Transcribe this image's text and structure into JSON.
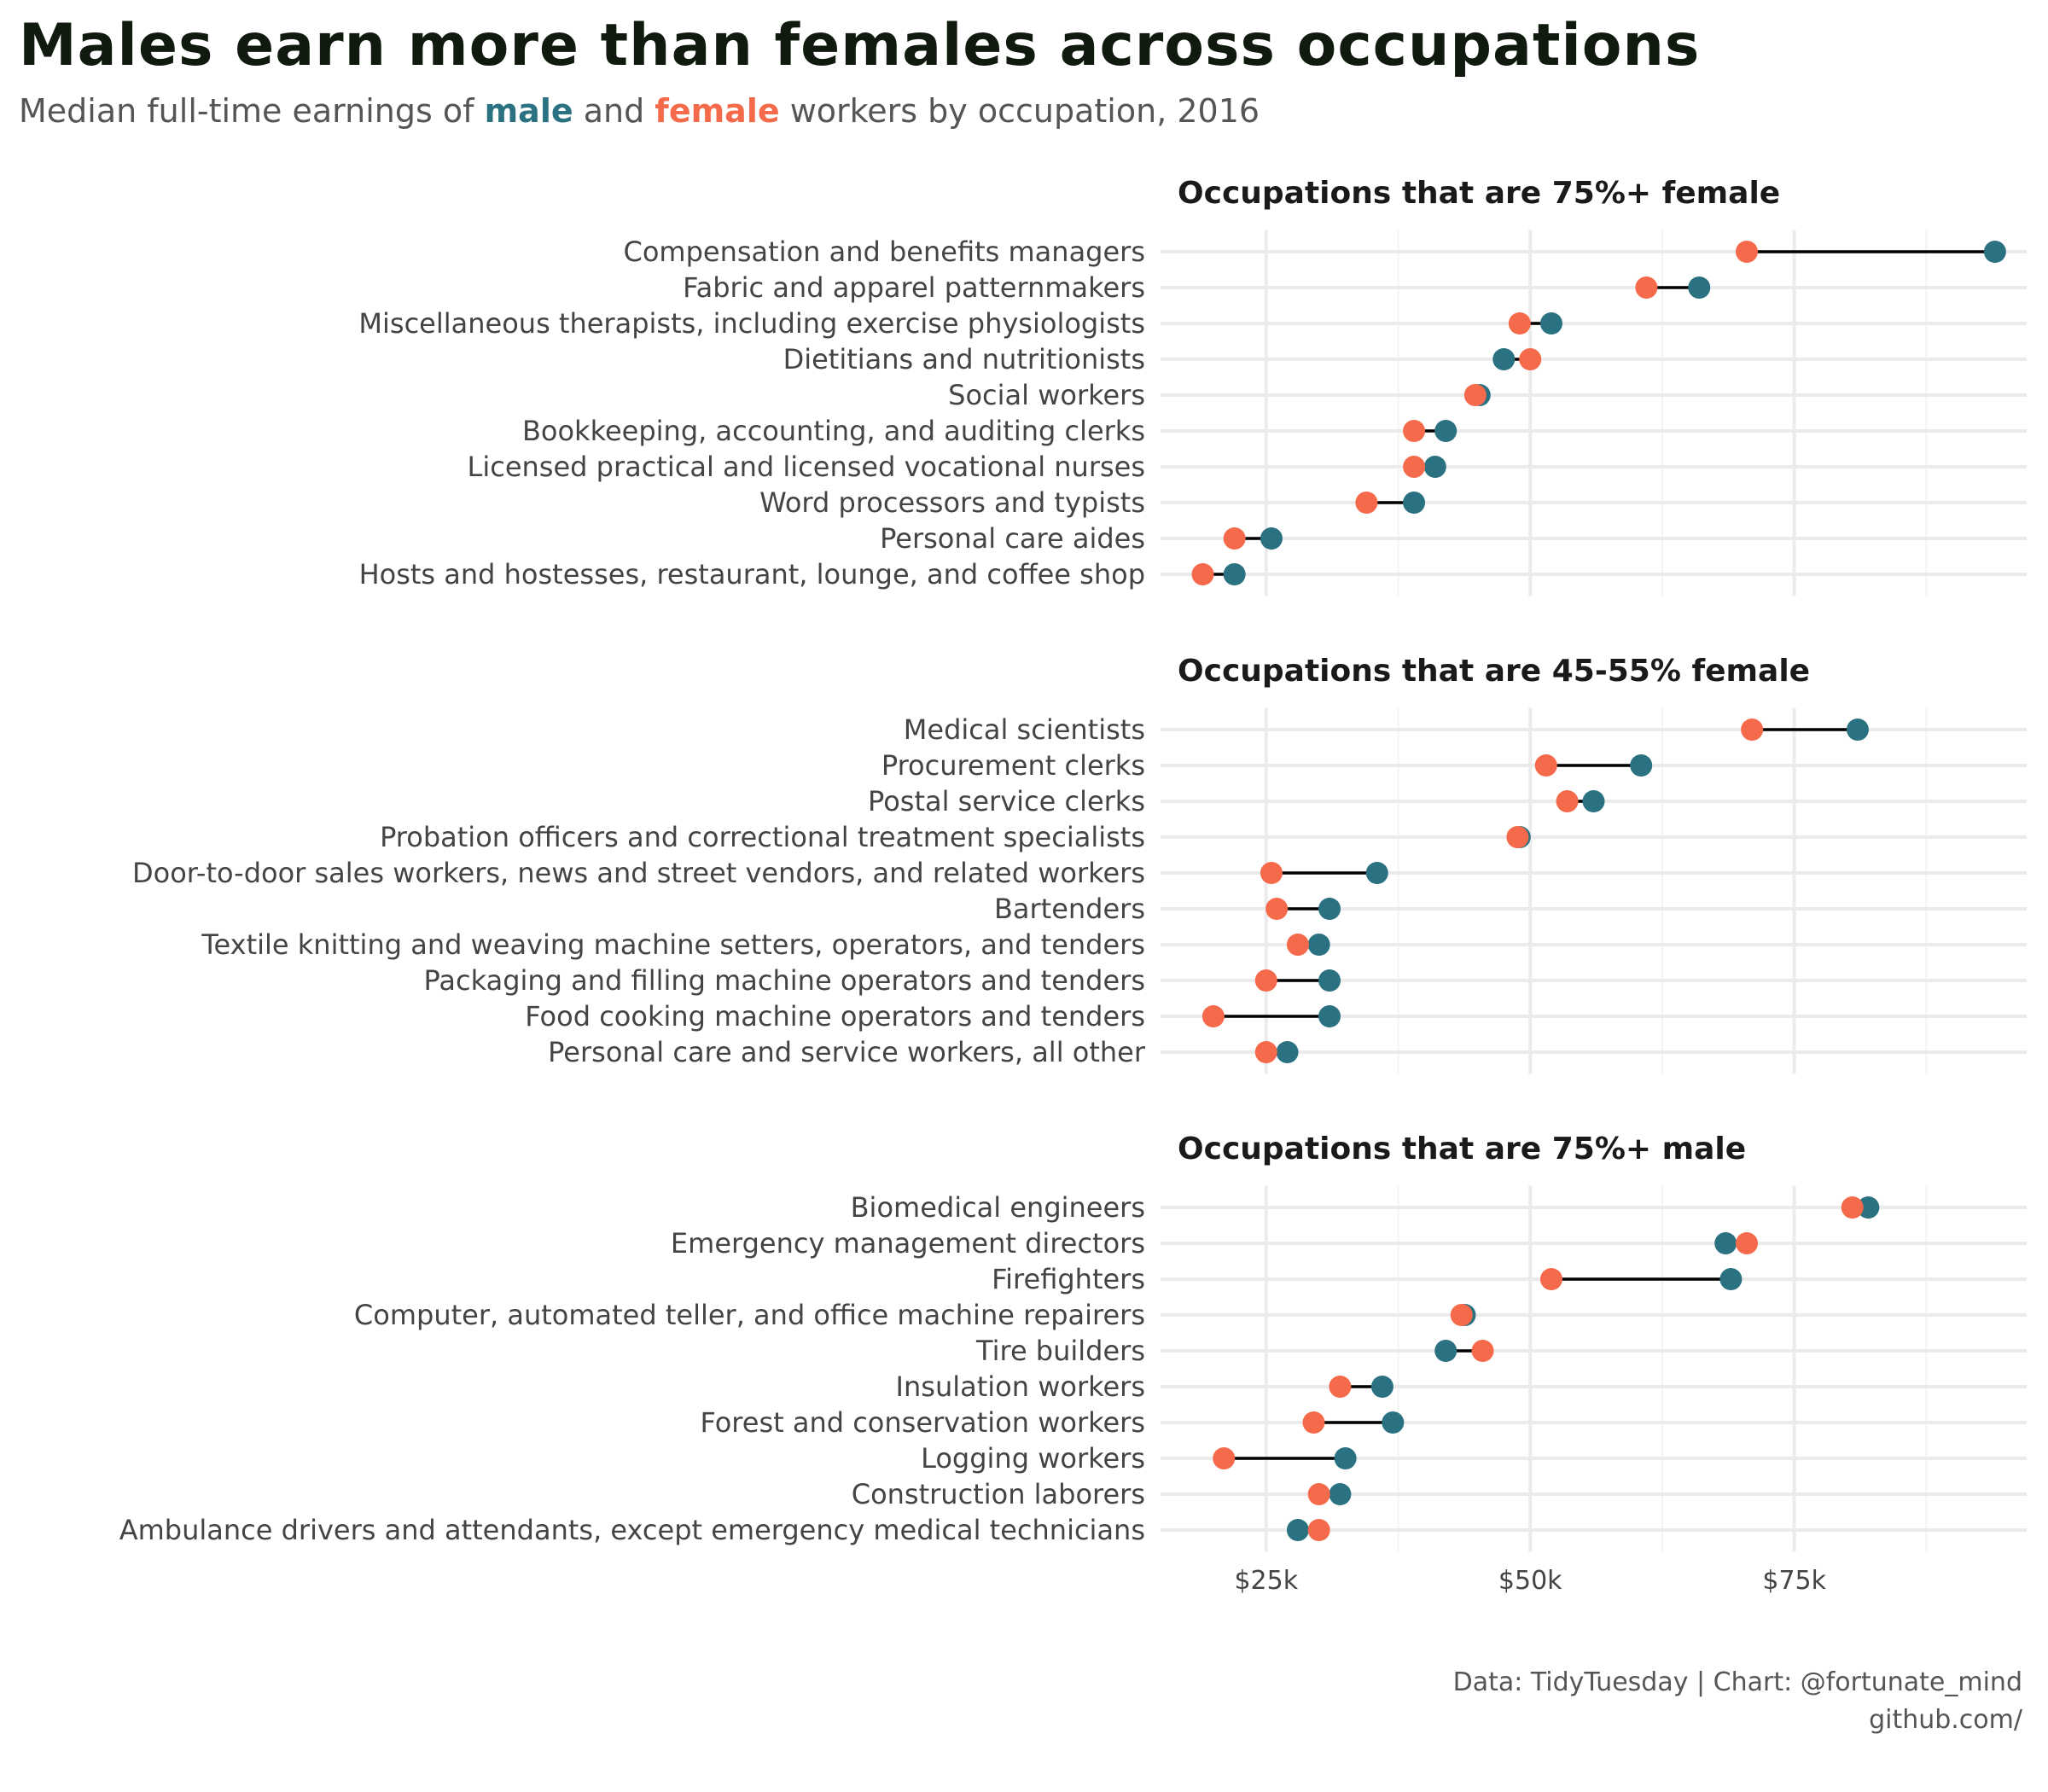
{
  "header": {
    "title": "Males earn more than females across occupations",
    "subtitle_prefix": "Median full-time earnings of ",
    "subtitle_male": "male",
    "subtitle_and": " and ",
    "subtitle_female": "female",
    "subtitle_suffix": " workers by occupation, 2016"
  },
  "colors": {
    "male": "#2a7181",
    "female": "#f56a4b",
    "connector": "#000000"
  },
  "caption": {
    "line1": "Data: TidyTuesday | Chart: @fortunate_mind",
    "line2": "github.com/"
  },
  "chart_data": {
    "type": "dumbbell",
    "x_axis": {
      "range": [
        15000,
        97000
      ],
      "ticks": [
        25000,
        50000,
        75000
      ],
      "tick_labels": [
        "$25k",
        "$50k",
        "$75k"
      ]
    },
    "panels": [
      {
        "title": "Occupations that are 75%+ female",
        "rows": [
          {
            "occupation": "Compensation and benefits managers",
            "female": 70500,
            "male": 94000
          },
          {
            "occupation": "Fabric and apparel patternmakers",
            "female": 61000,
            "male": 66000
          },
          {
            "occupation": "Miscellaneous therapists, including exercise physiologists",
            "female": 49000,
            "male": 52000
          },
          {
            "occupation": "Dietitians and nutritionists",
            "female": 50000,
            "male": 47500
          },
          {
            "occupation": "Social workers",
            "female": 44800,
            "male": 45200
          },
          {
            "occupation": "Bookkeeping, accounting, and auditing clerks",
            "female": 39000,
            "male": 42000
          },
          {
            "occupation": "Licensed practical and licensed vocational nurses",
            "female": 39000,
            "male": 41000
          },
          {
            "occupation": "Word processors and typists",
            "female": 34500,
            "male": 39000
          },
          {
            "occupation": "Personal care aides",
            "female": 22000,
            "male": 25500
          },
          {
            "occupation": "Hosts and hostesses, restaurant, lounge, and coffee shop",
            "female": 19000,
            "male": 22000
          }
        ]
      },
      {
        "title": "Occupations that are 45-55% female",
        "rows": [
          {
            "occupation": "Medical scientists",
            "female": 71000,
            "male": 81000
          },
          {
            "occupation": "Procurement clerks",
            "female": 51500,
            "male": 60500
          },
          {
            "occupation": "Postal service clerks",
            "female": 53500,
            "male": 56000
          },
          {
            "occupation": "Probation officers and correctional treatment specialists",
            "female": 48800,
            "male": 49000
          },
          {
            "occupation": "Door-to-door sales workers, news and street vendors, and related workers",
            "female": 25500,
            "male": 35500
          },
          {
            "occupation": "Bartenders",
            "female": 26000,
            "male": 31000
          },
          {
            "occupation": "Textile knitting and weaving machine setters, operators, and tenders",
            "female": 28000,
            "male": 30000
          },
          {
            "occupation": "Packaging and filling machine operators and tenders",
            "female": 25000,
            "male": 31000
          },
          {
            "occupation": "Food cooking machine operators and tenders",
            "female": 20000,
            "male": 31000
          },
          {
            "occupation": "Personal care and service workers, all other",
            "female": 25000,
            "male": 27000
          }
        ]
      },
      {
        "title": "Occupations that are 75%+ male",
        "rows": [
          {
            "occupation": "Biomedical engineers",
            "female": 80500,
            "male": 82000
          },
          {
            "occupation": "Emergency management directors",
            "female": 70500,
            "male": 68500
          },
          {
            "occupation": "Firefighters",
            "female": 52000,
            "male": 69000
          },
          {
            "occupation": "Computer, automated teller, and office machine repairers",
            "female": 43500,
            "male": 43800
          },
          {
            "occupation": "Tire builders",
            "female": 45500,
            "male": 42000
          },
          {
            "occupation": "Insulation workers",
            "female": 32000,
            "male": 36000
          },
          {
            "occupation": "Forest and conservation workers",
            "female": 29500,
            "male": 37000
          },
          {
            "occupation": "Logging workers",
            "female": 21000,
            "male": 32500
          },
          {
            "occupation": "Construction laborers",
            "female": 30000,
            "male": 32000
          },
          {
            "occupation": "Ambulance drivers and attendants, except emergency medical technicians",
            "female": 30000,
            "male": 28000
          }
        ]
      }
    ]
  }
}
